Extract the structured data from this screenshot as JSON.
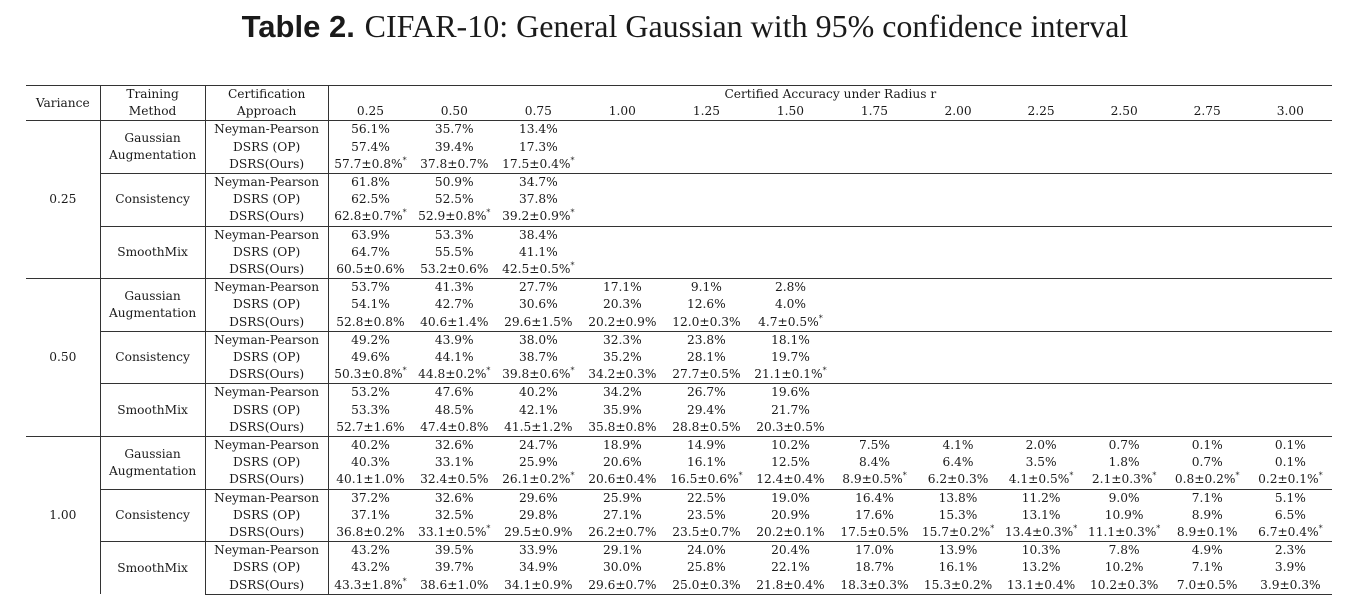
{
  "title": {
    "label": "Table 2.",
    "text": "CIFAR-10: General Gaussian with 95% confidence interval"
  },
  "header": {
    "variance": "Variance",
    "training_method": [
      "Training",
      "Method"
    ],
    "certification_approach": [
      "Certification",
      "Approach"
    ],
    "group": "Certified Accuracy under Radius r",
    "radii": [
      "0.25",
      "0.50",
      "0.75",
      "1.00",
      "1.25",
      "1.50",
      "1.75",
      "2.00",
      "2.25",
      "2.50",
      "2.75",
      "3.00"
    ]
  },
  "sections": [
    {
      "variance": "0.25",
      "methods": [
        {
          "name": [
            "Gaussian",
            "Augmentation"
          ],
          "rows": [
            {
              "approach": "Neyman-Pearson",
              "values": [
                "56.1%",
                "35.7%",
                "13.4%"
              ]
            },
            {
              "approach": "DSRS (OP)",
              "values": [
                "57.4%",
                "39.4%",
                "17.3%"
              ]
            },
            {
              "approach": "DSRS(Ours)",
              "values": [
                "57.7±0.8%*",
                "37.8±0.7%",
                "17.5±0.4%*"
              ]
            }
          ]
        },
        {
          "name": [
            "Consistency"
          ],
          "rows": [
            {
              "approach": "Neyman-Pearson",
              "values": [
                "61.8%",
                "50.9%",
                "34.7%"
              ]
            },
            {
              "approach": "DSRS (OP)",
              "values": [
                "62.5%",
                "52.5%",
                "37.8%"
              ]
            },
            {
              "approach": "DSRS(Ours)",
              "values": [
                "62.8±0.7%*",
                "52.9±0.8%*",
                "39.2±0.9%*"
              ]
            }
          ]
        },
        {
          "name": [
            "SmoothMix"
          ],
          "rows": [
            {
              "approach": "Neyman-Pearson",
              "values": [
                "63.9%",
                "53.3%",
                "38.4%"
              ]
            },
            {
              "approach": "DSRS (OP)",
              "values": [
                "64.7%",
                "55.5%",
                "41.1%"
              ]
            },
            {
              "approach": "DSRS(Ours)",
              "values": [
                "60.5±0.6%",
                "53.2±0.6%",
                "42.5±0.5%*"
              ]
            }
          ]
        }
      ]
    },
    {
      "variance": "0.50",
      "methods": [
        {
          "name": [
            "Gaussian",
            "Augmentation"
          ],
          "rows": [
            {
              "approach": "Neyman-Pearson",
              "values": [
                "53.7%",
                "41.3%",
                "27.7%",
                "17.1%",
                "9.1%",
                "2.8%"
              ]
            },
            {
              "approach": "DSRS (OP)",
              "values": [
                "54.1%",
                "42.7%",
                "30.6%",
                "20.3%",
                "12.6%",
                "4.0%"
              ]
            },
            {
              "approach": "DSRS(Ours)",
              "values": [
                "52.8±0.8%",
                "40.6±1.4%",
                "29.6±1.5%",
                "20.2±0.9%",
                "12.0±0.3%",
                "4.7±0.5%*"
              ]
            }
          ]
        },
        {
          "name": [
            "Consistency"
          ],
          "rows": [
            {
              "approach": "Neyman-Pearson",
              "values": [
                "49.2%",
                "43.9%",
                "38.0%",
                "32.3%",
                "23.8%",
                "18.1%"
              ]
            },
            {
              "approach": "DSRS (OP)",
              "values": [
                "49.6%",
                "44.1%",
                "38.7%",
                "35.2%",
                "28.1%",
                "19.7%"
              ]
            },
            {
              "approach": "DSRS(Ours)",
              "values": [
                "50.3±0.8%*",
                "44.8±0.2%*",
                "39.8±0.6%*",
                "34.2±0.3%",
                "27.7±0.5%",
                "21.1±0.1%*"
              ]
            }
          ]
        },
        {
          "name": [
            "SmoothMix"
          ],
          "rows": [
            {
              "approach": "Neyman-Pearson",
              "values": [
                "53.2%",
                "47.6%",
                "40.2%",
                "34.2%",
                "26.7%",
                "19.6%"
              ]
            },
            {
              "approach": "DSRS (OP)",
              "values": [
                "53.3%",
                "48.5%",
                "42.1%",
                "35.9%",
                "29.4%",
                "21.7%"
              ]
            },
            {
              "approach": "DSRS(Ours)",
              "values": [
                "52.7±1.6%",
                "47.4±0.8%",
                "41.5±1.2%",
                "35.8±0.8%",
                "28.8±0.5%",
                "20.3±0.5%"
              ]
            }
          ]
        }
      ]
    },
    {
      "variance": "1.00",
      "methods": [
        {
          "name": [
            "Gaussian",
            "Augmentation"
          ],
          "rows": [
            {
              "approach": "Neyman-Pearson",
              "values": [
                "40.2%",
                "32.6%",
                "24.7%",
                "18.9%",
                "14.9%",
                "10.2%",
                "7.5%",
                "4.1%",
                "2.0%",
                "0.7%",
                "0.1%",
                "0.1%"
              ]
            },
            {
              "approach": "DSRS (OP)",
              "values": [
                "40.3%",
                "33.1%",
                "25.9%",
                "20.6%",
                "16.1%",
                "12.5%",
                "8.4%",
                "6.4%",
                "3.5%",
                "1.8%",
                "0.7%",
                "0.1%"
              ]
            },
            {
              "approach": "DSRS(Ours)",
              "values": [
                "40.1±1.0%",
                "32.4±0.5%",
                "26.1±0.2%*",
                "20.6±0.4%",
                "16.5±0.6%*",
                "12.4±0.4%",
                "8.9±0.5%*",
                "6.2±0.3%",
                "4.1±0.5%*",
                "2.1±0.3%*",
                "0.8±0.2%*",
                "0.2±0.1%*"
              ]
            }
          ]
        },
        {
          "name": [
            "Consistency"
          ],
          "rows": [
            {
              "approach": "Neyman-Pearson",
              "values": [
                "37.2%",
                "32.6%",
                "29.6%",
                "25.9%",
                "22.5%",
                "19.0%",
                "16.4%",
                "13.8%",
                "11.2%",
                "9.0%",
                "7.1%",
                "5.1%"
              ]
            },
            {
              "approach": "DSRS (OP)",
              "values": [
                "37.1%",
                "32.5%",
                "29.8%",
                "27.1%",
                "23.5%",
                "20.9%",
                "17.6%",
                "15.3%",
                "13.1%",
                "10.9%",
                "8.9%",
                "6.5%"
              ]
            },
            {
              "approach": "DSRS(Ours)",
              "values": [
                "36.8±0.2%",
                "33.1±0.5%*",
                "29.5±0.9%",
                "26.2±0.7%",
                "23.5±0.7%",
                "20.2±0.1%",
                "17.5±0.5%",
                "15.7±0.2%*",
                "13.4±0.3%*",
                "11.1±0.3%*",
                "8.9±0.1%",
                "6.7±0.4%*"
              ]
            }
          ]
        },
        {
          "name": [
            "SmoothMix"
          ],
          "rows": [
            {
              "approach": "Neyman-Pearson",
              "values": [
                "43.2%",
                "39.5%",
                "33.9%",
                "29.1%",
                "24.0%",
                "20.4%",
                "17.0%",
                "13.9%",
                "10.3%",
                "7.8%",
                "4.9%",
                "2.3%"
              ]
            },
            {
              "approach": "DSRS (OP)",
              "values": [
                "43.2%",
                "39.7%",
                "34.9%",
                "30.0%",
                "25.8%",
                "22.1%",
                "18.7%",
                "16.1%",
                "13.2%",
                "10.2%",
                "7.1%",
                "3.9%"
              ]
            },
            {
              "approach": "DSRS(Ours)",
              "values": [
                "43.3±1.8%*",
                "38.6±1.0%",
                "34.1±0.9%",
                "29.6±0.7%",
                "25.0±0.3%",
                "21.8±0.4%",
                "18.3±0.3%",
                "15.3±0.2%",
                "13.1±0.4%",
                "10.2±0.3%",
                "7.0±0.5%",
                "3.9±0.3%"
              ]
            }
          ]
        }
      ]
    }
  ]
}
